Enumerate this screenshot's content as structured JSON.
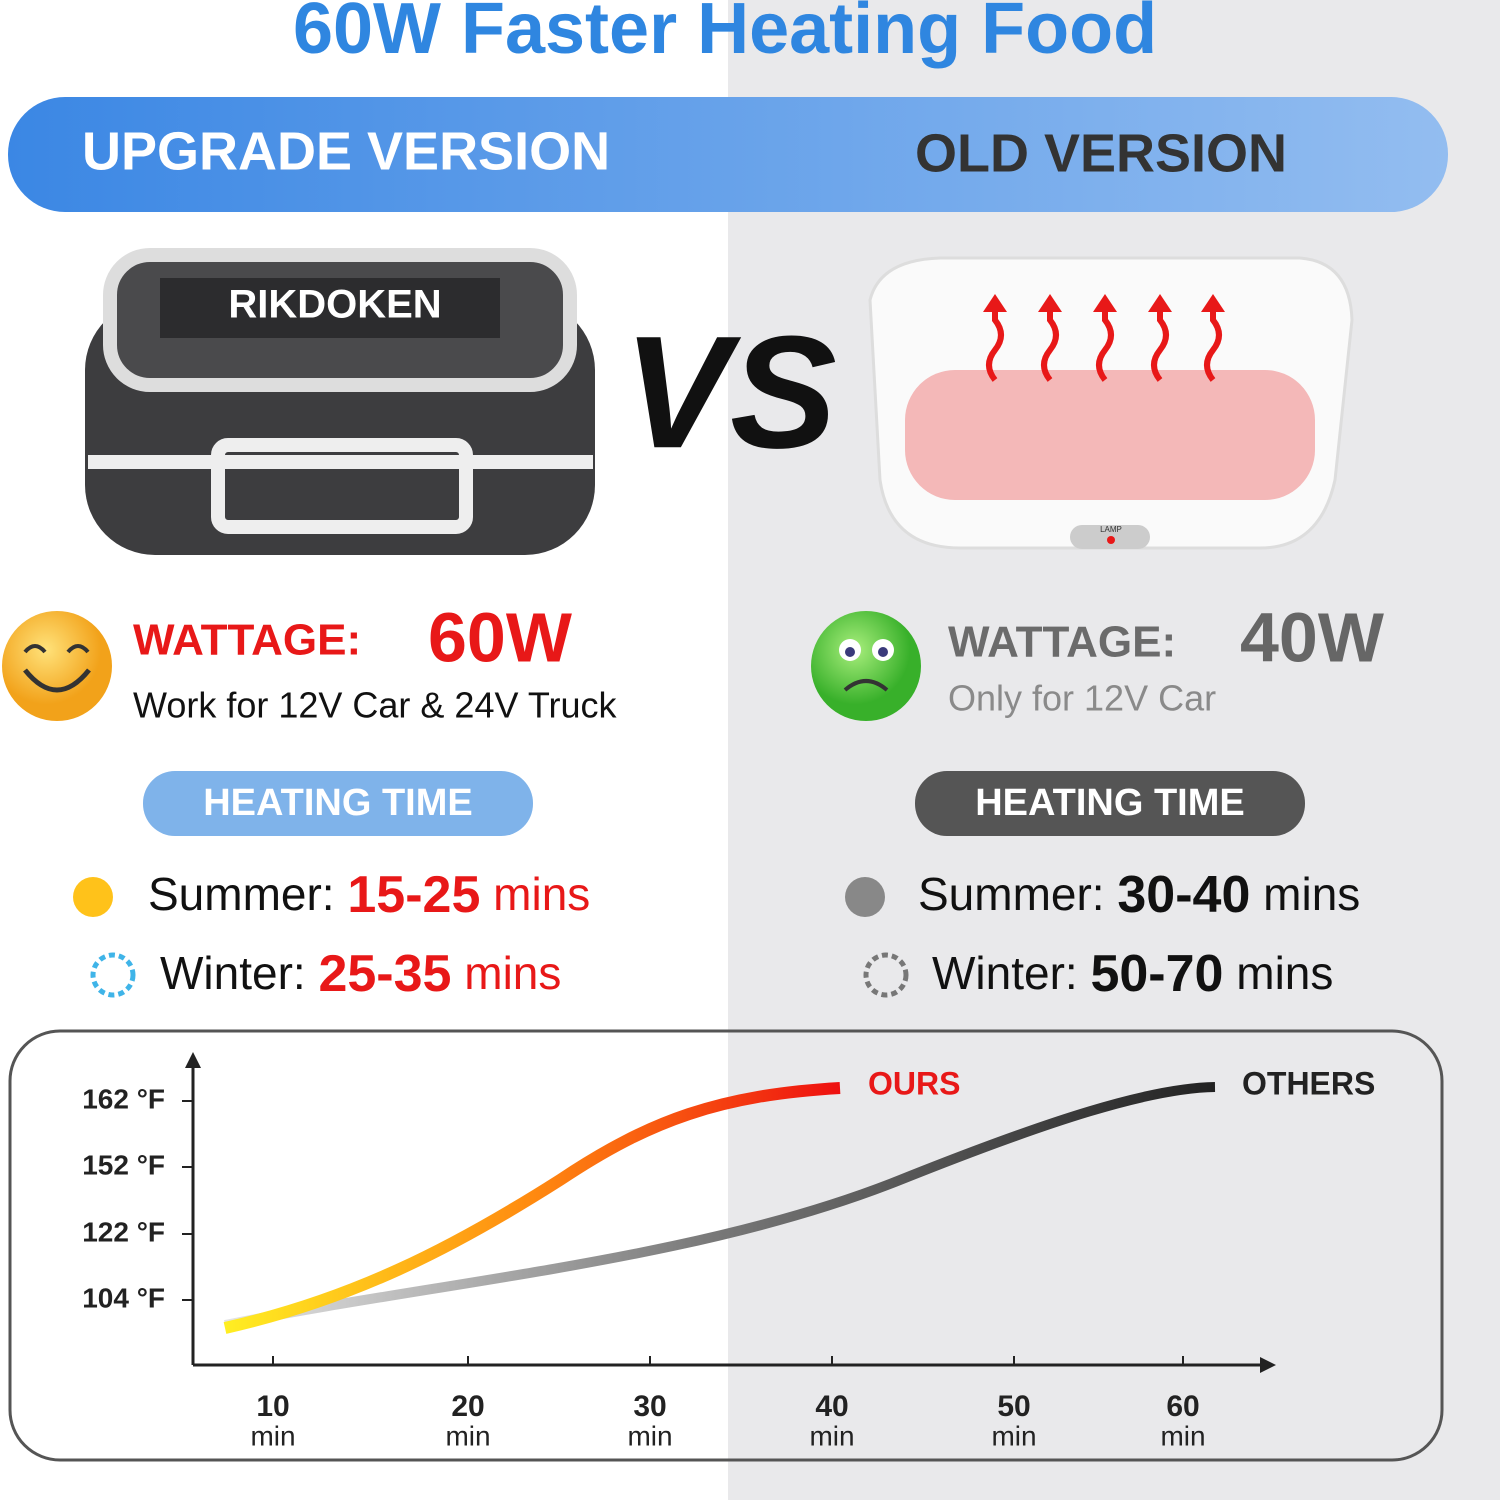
{
  "header": {
    "title": "60W Faster Heating Food",
    "left_version": "UPGRADE VERSION",
    "right_version": "OLD VERSION"
  },
  "products": {
    "brand": "RIKDOKEN",
    "vs": "VS",
    "lamp": "LAMP"
  },
  "left": {
    "wattage_label": "WATTAGE:",
    "wattage_value": "60W",
    "note": "Work for 12V Car & 24V Truck",
    "heating_time": "HEATING TIME",
    "summer_label": "Summer:",
    "summer_value": "15-25",
    "summer_unit": "mins",
    "winter_label": "Winter:",
    "winter_value": "25-35",
    "winter_unit": "mins"
  },
  "right": {
    "wattage_label": "WATTAGE:",
    "wattage_value": "40W",
    "note": "Only for 12V Car",
    "heating_time": "HEATING TIME",
    "summer_label": "Summer:",
    "summer_value": "30-40",
    "summer_unit": "mins",
    "winter_label": "Winter:",
    "winter_value": "50-70",
    "winter_unit": "mins"
  },
  "graph": {
    "y_labels": [
      "162 °F",
      "152 °F",
      "122 °F",
      "104 °F"
    ],
    "x_labels": [
      "10",
      "20",
      "30",
      "40",
      "50",
      "60"
    ],
    "x_unit": "min",
    "ours": "OURS",
    "others": "OTHERS"
  }
}
